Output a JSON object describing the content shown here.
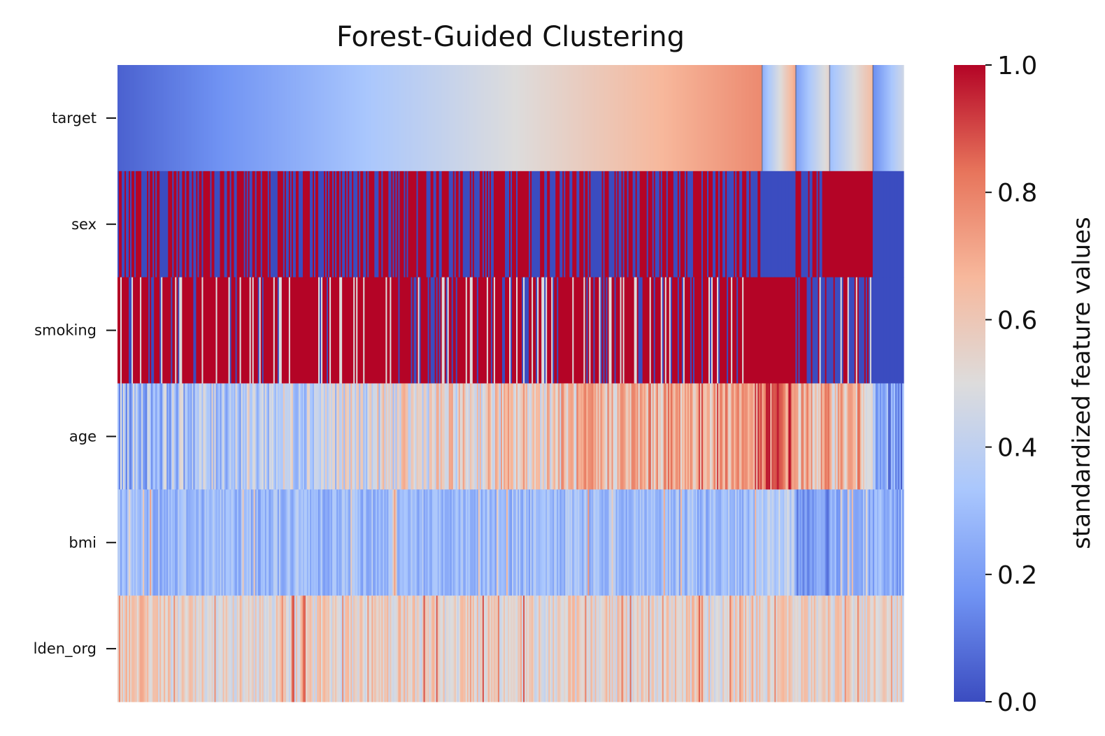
{
  "chart_data": {
    "type": "heatmap",
    "title": "Forest-Guided Clustering",
    "rows": [
      "target",
      "sex",
      "smoking",
      "age",
      "bmi",
      "lden_org"
    ],
    "colormap": "coolwarm",
    "colormap_stops": [
      "#3b4cc0",
      "#7093f3",
      "#aac7fd",
      "#dddcdc",
      "#f7b89c",
      "#e7745b",
      "#b40426"
    ],
    "value_range": [
      0,
      1
    ],
    "cluster_boundaries": [
      0.82,
      0.863,
      0.906,
      0.961
    ],
    "clusters": [
      {
        "target": [
          0.05,
          0.78
        ],
        "sex_mean": 0.55,
        "smoking_mean": 0.7,
        "age_mean": [
          0.3,
          0.75
        ],
        "bmi_mean": 0.3,
        "lden_mean": 0.55
      },
      {
        "target": [
          0.25,
          0.72
        ],
        "sex_mean": 0.0,
        "smoking_mean": 1.0,
        "age_mean": 0.82,
        "bmi_mean": 0.4,
        "lden_mean": 0.55
      },
      {
        "target": [
          0.2,
          0.55
        ],
        "sex_mean": 0.5,
        "smoking_mean": 0.4,
        "age_mean": 0.65,
        "bmi_mean": 0.17,
        "lden_mean": 0.55
      },
      {
        "target": [
          0.3,
          0.65
        ],
        "sex_mean": 1.0,
        "smoking_mean": 0.45,
        "age_mean": 0.65,
        "bmi_mean": 0.27,
        "lden_mean": 0.55
      },
      {
        "target": [
          0.15,
          0.45
        ],
        "sex_mean": 0.0,
        "smoking_mean": 0.0,
        "age_mean": 0.18,
        "bmi_mean": 0.25,
        "lden_mean": 0.55
      }
    ],
    "colorbar": {
      "ticks": [
        "0.0",
        "0.2",
        "0.4",
        "0.6",
        "0.8",
        "1.0"
      ],
      "label": "standardized feature values"
    }
  }
}
